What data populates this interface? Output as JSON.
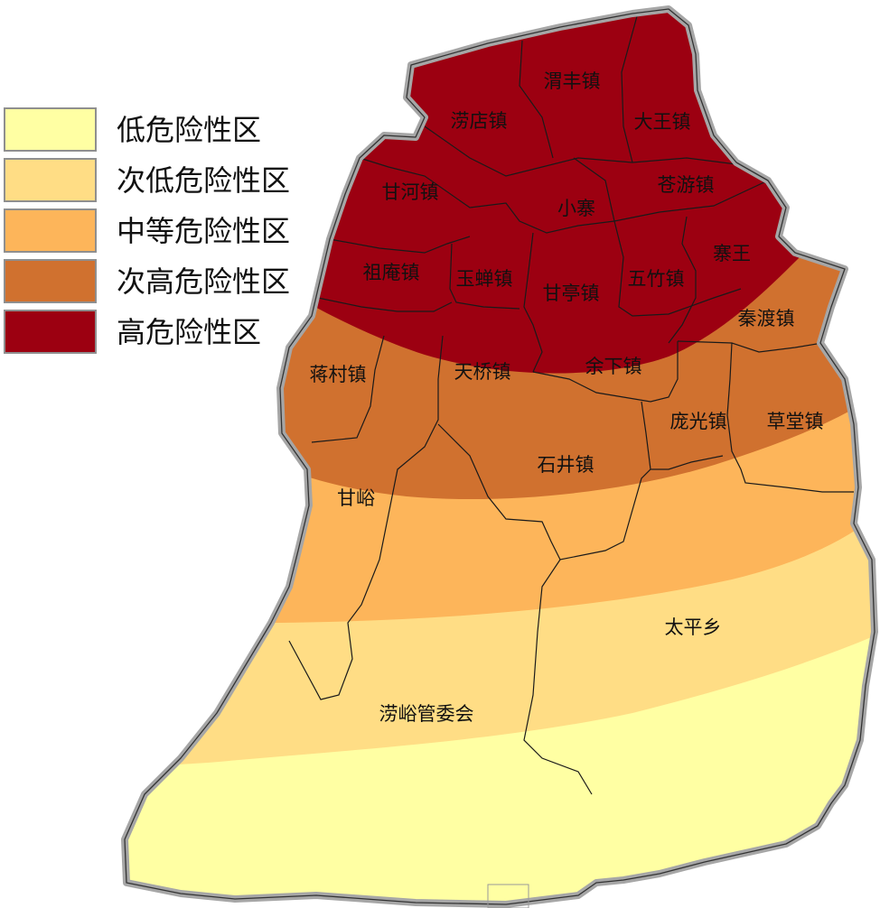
{
  "legend": {
    "items": [
      {
        "label": "低危险性区",
        "color": "#ffffa3"
      },
      {
        "label": "次低危险性区",
        "color": "#ffdd85"
      },
      {
        "label": "中等危险性区",
        "color": "#fdb55a"
      },
      {
        "label": "次高危险性区",
        "color": "#d0712f"
      },
      {
        "label": "高危险性区",
        "color": "#9c0011"
      }
    ]
  },
  "map": {
    "outline_color": "#a6a6a6",
    "boundary_color": "#1a1a1a",
    "towns": [
      "渭丰镇",
      "涝店镇",
      "大王镇",
      "苍游镇",
      "甘河镇",
      "小寨",
      "寨王",
      "祖庵镇",
      "玉蝉镇",
      "甘亭镇",
      "五竹镇",
      "秦渡镇",
      "蒋村镇",
      "天桥镇",
      "余下镇",
      "庞光镇",
      "草堂镇",
      "石井镇",
      "甘峪",
      "太平乡",
      "涝峪管委会"
    ]
  }
}
